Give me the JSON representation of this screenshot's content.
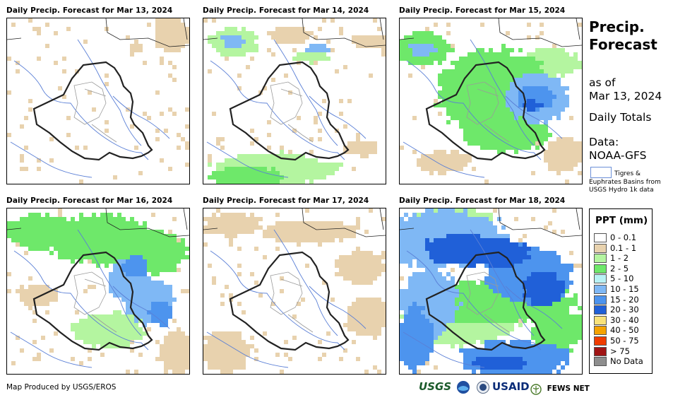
{
  "panels": [
    {
      "title": "Daily Precip. Forecast for Mar 13, 2024"
    },
    {
      "title": "Daily Precip. Forecast for Mar 14, 2024"
    },
    {
      "title": "Daily Precip. Forecast for Mar 15, 2024"
    },
    {
      "title": "Daily Precip. Forecast for Mar 16, 2024"
    },
    {
      "title": "Daily Precip. Forecast for Mar 17, 2024"
    },
    {
      "title": "Daily Precip. Forecast for Mar 18, 2024"
    }
  ],
  "sidebar": {
    "title_line1": "Precip.",
    "title_line2": "Forecast",
    "as_of_line1": "as of",
    "as_of_line2": "Mar 13, 2024",
    "daily_totals": "Daily Totals",
    "data_line1": "Data:",
    "data_line2": "NOAA-GFS",
    "basin_line1": "Tigres &",
    "basin_line2": "Euphrates Basins from",
    "basin_line3": "USGS Hydro 1k data"
  },
  "legend": {
    "title": "PPT (mm)",
    "items": [
      {
        "label": "0 - 0.1",
        "color": "#ffffff"
      },
      {
        "label": "0.1 - 1",
        "color": "#e8d2ae"
      },
      {
        "label": "1 - 2",
        "color": "#b4f5a0"
      },
      {
        "label": "2 - 5",
        "color": "#6ee86a"
      },
      {
        "label": "5 - 10",
        "color": "#b8f2f5"
      },
      {
        "label": "10 - 15",
        "color": "#7fb8f5"
      },
      {
        "label": "15 - 20",
        "color": "#4d94ee"
      },
      {
        "label": "20 - 30",
        "color": "#2060d8"
      },
      {
        "label": "30 - 40",
        "color": "#f8e27a"
      },
      {
        "label": "40 - 50",
        "color": "#f5a300"
      },
      {
        "label": "50 - 75",
        "color": "#f03c00"
      },
      {
        "label": "> 75",
        "color": "#a01414"
      },
      {
        "label": "No Data",
        "color": "#8e8e8e"
      }
    ]
  },
  "footer": {
    "credit": "Map Produced by USGS/EROS",
    "logos": [
      "USGS",
      "NOAA",
      "DHS",
      "USAID",
      "FEWS NET"
    ]
  }
}
